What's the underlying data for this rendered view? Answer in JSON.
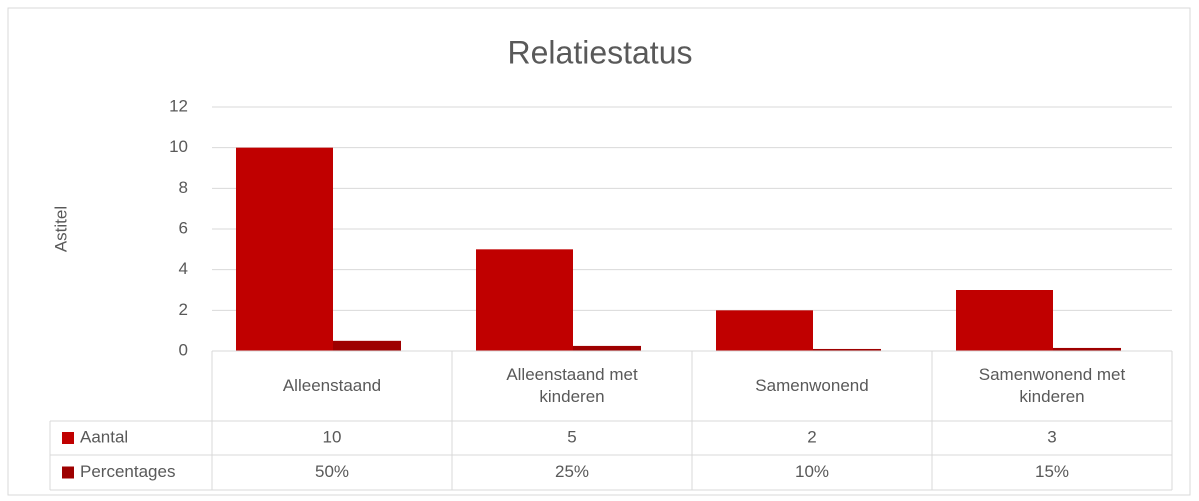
{
  "chart_data": {
    "type": "bar",
    "title": "Relatiestatus",
    "y_label": "Astitel",
    "categories": [
      "Alleenstaand",
      "Alleenstaand met kinderen",
      "Samenwonend",
      "Samenwonend met kinderen"
    ],
    "series": [
      {
        "name": "Aantal",
        "color": "#c00000",
        "values": [
          10,
          5,
          2,
          3
        ]
      },
      {
        "name": "Percentages",
        "color": "#9e0000",
        "values": [
          0.5,
          0.25,
          0.1,
          0.15
        ],
        "value_labels": [
          "50%",
          "25%",
          "10%",
          "15%"
        ]
      }
    ],
    "ylim": [
      0,
      12
    ],
    "yticks": [
      0,
      2,
      4,
      6,
      8,
      10,
      12
    ],
    "grid": true,
    "data_table": true
  }
}
